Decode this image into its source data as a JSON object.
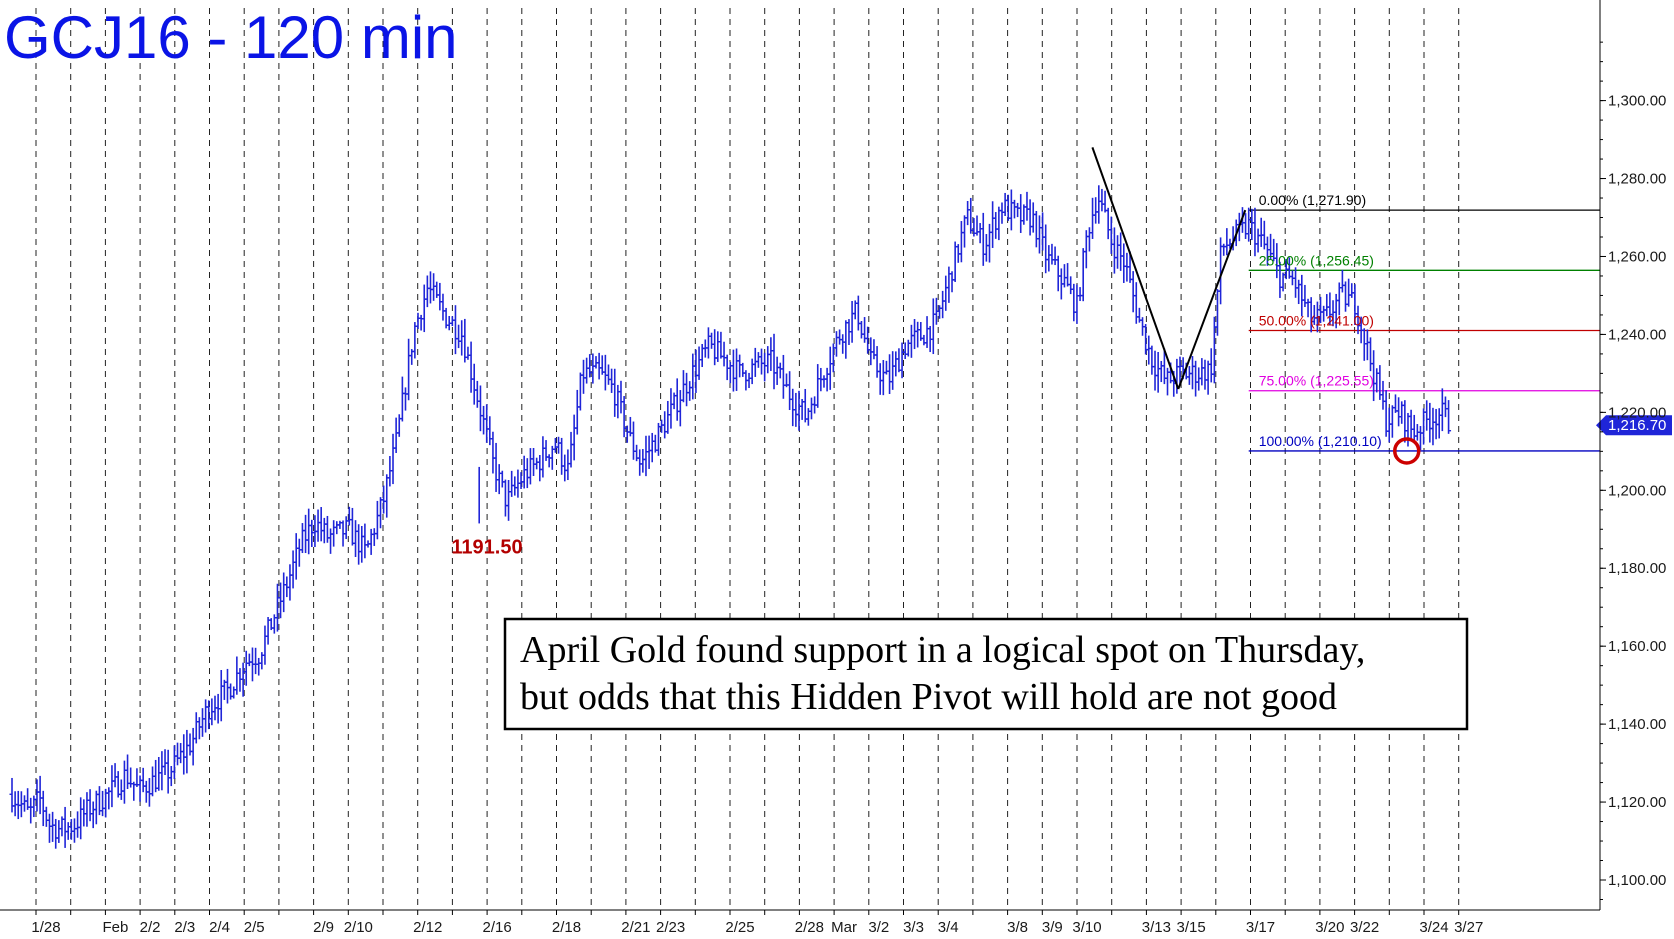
{
  "chart_data": {
    "type": "ohlc",
    "title": "GCJ16 - 120 min",
    "y_axis": {
      "range": [
        1090,
        1320
      ],
      "position": "right",
      "tick_values": [
        1100,
        1120,
        1140,
        1160,
        1180,
        1200,
        1220,
        1240,
        1260,
        1280,
        1300
      ],
      "tick_labels": [
        "1,100.00",
        "1,120.00",
        "1,140.00",
        "1,160.00",
        "1,180.00",
        "1,200.00",
        "1,220.00",
        "1,240.00",
        "1,260.00",
        "1,280.00",
        "1,300.00"
      ]
    },
    "x_axis": {
      "type": "session-index",
      "range": [
        0,
        47
      ],
      "sessions": [
        {
          "i": 1,
          "label": "1/28"
        },
        {
          "i": 2,
          "label": ""
        },
        {
          "i": 3,
          "label": "Feb"
        },
        {
          "i": 4,
          "label": "2/2"
        },
        {
          "i": 5,
          "label": "2/3"
        },
        {
          "i": 6,
          "label": "2/4"
        },
        {
          "i": 7,
          "label": "2/5"
        },
        {
          "i": 8,
          "label": ""
        },
        {
          "i": 9,
          "label": "2/9"
        },
        {
          "i": 10,
          "label": "2/10"
        },
        {
          "i": 11,
          "label": ""
        },
        {
          "i": 12,
          "label": "2/12"
        },
        {
          "i": 13,
          "label": ""
        },
        {
          "i": 14,
          "label": "2/16"
        },
        {
          "i": 15,
          "label": ""
        },
        {
          "i": 16,
          "label": "2/18"
        },
        {
          "i": 17,
          "label": ""
        },
        {
          "i": 18,
          "label": "2/21"
        },
        {
          "i": 19,
          "label": "2/23"
        },
        {
          "i": 20,
          "label": ""
        },
        {
          "i": 21,
          "label": "2/25"
        },
        {
          "i": 22,
          "label": ""
        },
        {
          "i": 23,
          "label": "2/28"
        },
        {
          "i": 24,
          "label": "Mar"
        },
        {
          "i": 25,
          "label": "3/2"
        },
        {
          "i": 26,
          "label": "3/3"
        },
        {
          "i": 27,
          "label": "3/4"
        },
        {
          "i": 28,
          "label": ""
        },
        {
          "i": 29,
          "label": "3/8"
        },
        {
          "i": 30,
          "label": "3/9"
        },
        {
          "i": 31,
          "label": "3/10"
        },
        {
          "i": 32,
          "label": ""
        },
        {
          "i": 33,
          "label": "3/13"
        },
        {
          "i": 34,
          "label": "3/15"
        },
        {
          "i": 35,
          "label": ""
        },
        {
          "i": 36,
          "label": "3/17"
        },
        {
          "i": 37,
          "label": ""
        },
        {
          "i": 38,
          "label": "3/20"
        },
        {
          "i": 39,
          "label": "3/22"
        },
        {
          "i": 40,
          "label": ""
        },
        {
          "i": 41,
          "label": "3/24"
        },
        {
          "i": 42,
          "label": "3/27"
        }
      ]
    },
    "series": [
      {
        "style": "ohlc-bars",
        "color": "#1f25d8",
        "path_points": [
          [
            0,
            1122
          ],
          [
            0.5,
            1117
          ],
          [
            0.8,
            1121
          ],
          [
            1.1,
            1114
          ],
          [
            1.4,
            1113
          ],
          [
            1.8,
            1114
          ],
          [
            2.2,
            1118
          ],
          [
            2.8,
            1122
          ],
          [
            3.3,
            1127
          ],
          [
            3.7,
            1123
          ],
          [
            4.2,
            1126
          ],
          [
            4.6,
            1128
          ],
          [
            5.2,
            1135
          ],
          [
            5.7,
            1144
          ],
          [
            6.3,
            1149
          ],
          [
            6.8,
            1156
          ],
          [
            7.2,
            1158
          ],
          [
            7.6,
            1167
          ],
          [
            8.0,
            1176
          ],
          [
            8.4,
            1186
          ],
          [
            8.8,
            1192
          ],
          [
            9.2,
            1188
          ],
          [
            9.8,
            1190
          ],
          [
            10.3,
            1184
          ],
          [
            10.8,
            1197
          ],
          [
            11.2,
            1213
          ],
          [
            11.7,
            1241
          ],
          [
            12.1,
            1252
          ],
          [
            12.6,
            1245
          ],
          [
            13.1,
            1240
          ],
          [
            13.6,
            1222
          ],
          [
            14.0,
            1207
          ],
          [
            14.4,
            1197
          ],
          [
            14.9,
            1204
          ],
          [
            15.3,
            1207
          ],
          [
            15.8,
            1212
          ],
          [
            16.2,
            1205
          ],
          [
            16.6,
            1230
          ],
          [
            17.1,
            1230
          ],
          [
            17.5,
            1226
          ],
          [
            18.0,
            1213
          ],
          [
            18.3,
            1207
          ],
          [
            18.8,
            1214
          ],
          [
            19.3,
            1222
          ],
          [
            19.8,
            1230
          ],
          [
            20.3,
            1237
          ],
          [
            20.7,
            1234
          ],
          [
            21.2,
            1230
          ],
          [
            21.7,
            1232
          ],
          [
            22.1,
            1233
          ],
          [
            22.6,
            1225
          ],
          [
            23.1,
            1219
          ],
          [
            23.6,
            1230
          ],
          [
            24.1,
            1240
          ],
          [
            24.6,
            1246
          ],
          [
            25.0,
            1233
          ],
          [
            25.5,
            1228
          ],
          [
            26.0,
            1237
          ],
          [
            26.5,
            1240
          ],
          [
            26.9,
            1243
          ],
          [
            27.4,
            1258
          ],
          [
            27.8,
            1270
          ],
          [
            28.3,
            1263
          ],
          [
            28.8,
            1273
          ],
          [
            29.3,
            1270
          ],
          [
            29.7,
            1270
          ],
          [
            30.1,
            1260
          ],
          [
            30.6,
            1254
          ],
          [
            31.0,
            1247
          ],
          [
            31.3,
            1266
          ],
          [
            31.6,
            1276
          ],
          [
            32.0,
            1264
          ],
          [
            32.4,
            1258
          ],
          [
            32.8,
            1244
          ],
          [
            33.2,
            1233
          ],
          [
            33.6,
            1228
          ],
          [
            34.0,
            1230
          ],
          [
            34.5,
            1230
          ],
          [
            34.9,
            1231
          ],
          [
            35.2,
            1262
          ],
          [
            35.6,
            1265
          ],
          [
            36.0,
            1268
          ],
          [
            36.5,
            1262
          ],
          [
            36.9,
            1255
          ],
          [
            37.3,
            1254
          ],
          [
            37.8,
            1244
          ],
          [
            38.2,
            1244
          ],
          [
            38.7,
            1250
          ],
          [
            39.1,
            1248
          ],
          [
            39.4,
            1238
          ],
          [
            39.7,
            1228
          ],
          [
            40.0,
            1218
          ],
          [
            40.4,
            1220
          ],
          [
            40.8,
            1215
          ],
          [
            41.2,
            1218
          ],
          [
            41.6,
            1220
          ],
          [
            41.9,
            1216.7
          ]
        ]
      }
    ],
    "swing_points": [
      {
        "label": "",
        "x": 31.45,
        "y": 1288
      },
      {
        "label": "",
        "x": 33.95,
        "y": 1226
      },
      {
        "label": "",
        "x": 35.9,
        "y": 1271.9
      }
    ],
    "fib_levels": [
      {
        "label": "0.00% (1,271.90)",
        "value": 1271.9,
        "color": "#000000"
      },
      {
        "label": "25.00% (1,256.45)",
        "value": 1256.45,
        "color": "#008000"
      },
      {
        "label": "50.00% (1,241.00)",
        "value": 1241.0,
        "color": "#c00000"
      },
      {
        "label": "75.00% (1,225.55)",
        "value": 1225.55,
        "color": "#e000e0"
      },
      {
        "label": "100.00% (1,210.10)",
        "value": 1210.1,
        "color": "#0000c0"
      }
    ],
    "fib_start_x": 36.0,
    "annotations": [
      {
        "text": "1191.50",
        "x": 14.1,
        "y": 1191.5,
        "color": "#b30000"
      }
    ],
    "target_marker": {
      "x": 40.6,
      "y": 1210.1,
      "color": "#cc0000"
    },
    "last_price": {
      "label": "1,216.70",
      "value": 1216.7,
      "color": "#1f25d8"
    },
    "note_box": {
      "lines": [
        "April Gold found support in a logical spot on Thursday,",
        "but odds that this Hidden Pivot will hold are not good"
      ]
    }
  }
}
